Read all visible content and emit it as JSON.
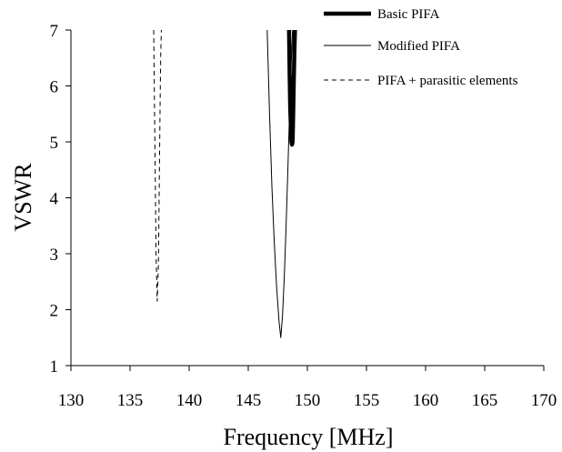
{
  "chart_data": {
    "type": "line",
    "title": "",
    "xlabel": "Frequency [MHz]",
    "ylabel": "VSWR",
    "xlim": [
      130,
      170
    ],
    "ylim": [
      1,
      7
    ],
    "xticks": [
      130,
      135,
      140,
      145,
      150,
      155,
      160,
      165,
      170
    ],
    "yticks": [
      1,
      2,
      3,
      4,
      5,
      6,
      7
    ],
    "grid": false,
    "legend_position": "top-right",
    "series": [
      {
        "name": "Basic PIFA",
        "style": "thick-solid",
        "color": "#000000",
        "points": [
          [
            148.45,
            7.0
          ],
          [
            148.5,
            6.2
          ],
          [
            148.55,
            5.6
          ],
          [
            148.6,
            5.3
          ],
          [
            148.65,
            5.0
          ],
          [
            148.7,
            4.95
          ],
          [
            148.75,
            5.0
          ],
          [
            148.8,
            5.5
          ],
          [
            148.85,
            6.1
          ],
          [
            148.9,
            6.6
          ],
          [
            148.95,
            7.0
          ]
        ]
      },
      {
        "name": "Modified PIFA",
        "style": "thin-solid",
        "color": "#000000",
        "points": [
          [
            146.6,
            7.0
          ],
          [
            146.8,
            5.5
          ],
          [
            147.0,
            4.2
          ],
          [
            147.2,
            3.2
          ],
          [
            147.4,
            2.4
          ],
          [
            147.6,
            1.8
          ],
          [
            147.75,
            1.5
          ],
          [
            147.9,
            1.9
          ],
          [
            148.05,
            2.6
          ],
          [
            148.2,
            3.5
          ],
          [
            148.35,
            4.5
          ],
          [
            148.5,
            5.6
          ],
          [
            148.65,
            6.5
          ],
          [
            148.75,
            7.0
          ]
        ]
      },
      {
        "name": "PIFA + parasitic elements",
        "style": "dashed",
        "color": "#000000",
        "points": [
          [
            137.0,
            7.0
          ],
          [
            137.05,
            6.0
          ],
          [
            137.1,
            5.0
          ],
          [
            137.15,
            4.0
          ],
          [
            137.2,
            3.0
          ],
          [
            137.3,
            2.15
          ],
          [
            137.4,
            2.8
          ],
          [
            137.45,
            3.8
          ],
          [
            137.5,
            4.8
          ],
          [
            137.55,
            5.8
          ],
          [
            137.6,
            6.6
          ],
          [
            137.65,
            7.0
          ]
        ]
      }
    ]
  }
}
